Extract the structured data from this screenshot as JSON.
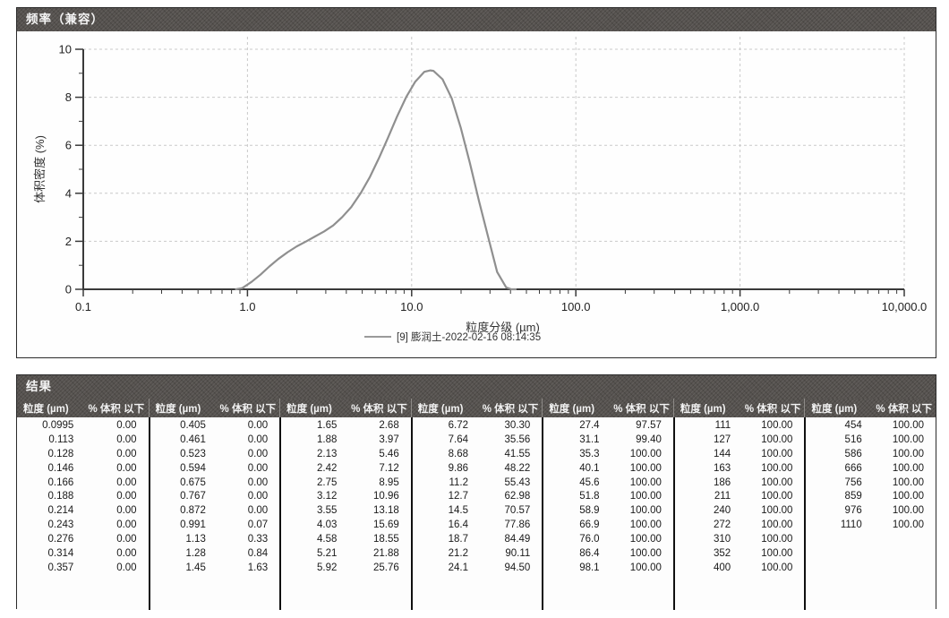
{
  "frequency_panel": {
    "title": "频率（兼容）"
  },
  "chart_data": {
    "type": "line",
    "title": "频率（兼容）",
    "xlabel": "粒度分级 (µm)",
    "ylabel": "体积密度 (%)",
    "x_scale": "log",
    "xlim": [
      0.1,
      10000
    ],
    "ylim": [
      0,
      10
    ],
    "x_tick_values": [
      0.1,
      1,
      10,
      100,
      1000,
      10000
    ],
    "x_tick_labels": [
      "0.1",
      "1.0",
      "10.0",
      "100.0",
      "1,000.0",
      "10,000.0"
    ],
    "y_tick_values": [
      0,
      2,
      4,
      6,
      8,
      10
    ],
    "grid": true,
    "legend_position": "bottom",
    "line_color": "#8f8f8f",
    "series": [
      {
        "name": "[9] 膨润土-2022-02-16 08:14:35",
        "points": [
          [
            0.85,
            0.0
          ],
          [
            0.93,
            0.05
          ],
          [
            1.06,
            0.31
          ],
          [
            1.2,
            0.61
          ],
          [
            1.36,
            0.95
          ],
          [
            1.54,
            1.26
          ],
          [
            1.76,
            1.55
          ],
          [
            2.0,
            1.79
          ],
          [
            2.27,
            1.99
          ],
          [
            2.58,
            2.2
          ],
          [
            2.93,
            2.41
          ],
          [
            3.33,
            2.66
          ],
          [
            3.78,
            3.01
          ],
          [
            4.29,
            3.43
          ],
          [
            4.89,
            4.0
          ],
          [
            5.55,
            4.66
          ],
          [
            6.31,
            5.45
          ],
          [
            7.17,
            6.31
          ],
          [
            8.14,
            7.19
          ],
          [
            9.25,
            8.0
          ],
          [
            10.51,
            8.65
          ],
          [
            11.93,
            9.06
          ],
          [
            13.0,
            9.12
          ],
          [
            13.57,
            9.1
          ],
          [
            15.42,
            8.75
          ],
          [
            17.52,
            7.96
          ],
          [
            19.91,
            6.74
          ],
          [
            22.61,
            5.27
          ],
          [
            25.7,
            3.68
          ],
          [
            29.19,
            2.2
          ],
          [
            33.15,
            0.72
          ],
          [
            37.63,
            0.08
          ],
          [
            40.5,
            0.0
          ],
          [
            43.0,
            0.0
          ]
        ]
      }
    ]
  },
  "results_panel": {
    "title": "结果",
    "size_header": "粒度 (µm)",
    "pct_header": "% 体积 以下",
    "groups": [
      {
        "rows": [
          [
            "0.0995",
            "0.00"
          ],
          [
            "0.113",
            "0.00"
          ],
          [
            "0.128",
            "0.00"
          ],
          [
            "0.146",
            "0.00"
          ],
          [
            "0.166",
            "0.00"
          ],
          [
            "0.188",
            "0.00"
          ],
          [
            "0.214",
            "0.00"
          ],
          [
            "0.243",
            "0.00"
          ],
          [
            "0.276",
            "0.00"
          ],
          [
            "0.314",
            "0.00"
          ],
          [
            "0.357",
            "0.00"
          ]
        ]
      },
      {
        "rows": [
          [
            "0.405",
            "0.00"
          ],
          [
            "0.461",
            "0.00"
          ],
          [
            "0.523",
            "0.00"
          ],
          [
            "0.594",
            "0.00"
          ],
          [
            "0.675",
            "0.00"
          ],
          [
            "0.767",
            "0.00"
          ],
          [
            "0.872",
            "0.00"
          ],
          [
            "0.991",
            "0.07"
          ],
          [
            "1.13",
            "0.33"
          ],
          [
            "1.28",
            "0.84"
          ],
          [
            "1.45",
            "1.63"
          ]
        ]
      },
      {
        "rows": [
          [
            "1.65",
            "2.68"
          ],
          [
            "1.88",
            "3.97"
          ],
          [
            "2.13",
            "5.46"
          ],
          [
            "2.42",
            "7.12"
          ],
          [
            "2.75",
            "8.95"
          ],
          [
            "3.12",
            "10.96"
          ],
          [
            "3.55",
            "13.18"
          ],
          [
            "4.03",
            "15.69"
          ],
          [
            "4.58",
            "18.55"
          ],
          [
            "5.21",
            "21.88"
          ],
          [
            "5.92",
            "25.76"
          ]
        ]
      },
      {
        "rows": [
          [
            "6.72",
            "30.30"
          ],
          [
            "7.64",
            "35.56"
          ],
          [
            "8.68",
            "41.55"
          ],
          [
            "9.86",
            "48.22"
          ],
          [
            "11.2",
            "55.43"
          ],
          [
            "12.7",
            "62.98"
          ],
          [
            "14.5",
            "70.57"
          ],
          [
            "16.4",
            "77.86"
          ],
          [
            "18.7",
            "84.49"
          ],
          [
            "21.2",
            "90.11"
          ],
          [
            "24.1",
            "94.50"
          ]
        ]
      },
      {
        "rows": [
          [
            "27.4",
            "97.57"
          ],
          [
            "31.1",
            "99.40"
          ],
          [
            "35.3",
            "100.00"
          ],
          [
            "40.1",
            "100.00"
          ],
          [
            "45.6",
            "100.00"
          ],
          [
            "51.8",
            "100.00"
          ],
          [
            "58.9",
            "100.00"
          ],
          [
            "66.9",
            "100.00"
          ],
          [
            "76.0",
            "100.00"
          ],
          [
            "86.4",
            "100.00"
          ],
          [
            "98.1",
            "100.00"
          ]
        ]
      },
      {
        "rows": [
          [
            "111",
            "100.00"
          ],
          [
            "127",
            "100.00"
          ],
          [
            "144",
            "100.00"
          ],
          [
            "163",
            "100.00"
          ],
          [
            "186",
            "100.00"
          ],
          [
            "211",
            "100.00"
          ],
          [
            "240",
            "100.00"
          ],
          [
            "272",
            "100.00"
          ],
          [
            "310",
            "100.00"
          ],
          [
            "352",
            "100.00"
          ],
          [
            "400",
            "100.00"
          ]
        ]
      },
      {
        "rows": [
          [
            "454",
            "100.00"
          ],
          [
            "516",
            "100.00"
          ],
          [
            "586",
            "100.00"
          ],
          [
            "666",
            "100.00"
          ],
          [
            "756",
            "100.00"
          ],
          [
            "859",
            "100.00"
          ],
          [
            "976",
            "100.00"
          ],
          [
            "1110",
            "100.00"
          ]
        ]
      }
    ]
  }
}
